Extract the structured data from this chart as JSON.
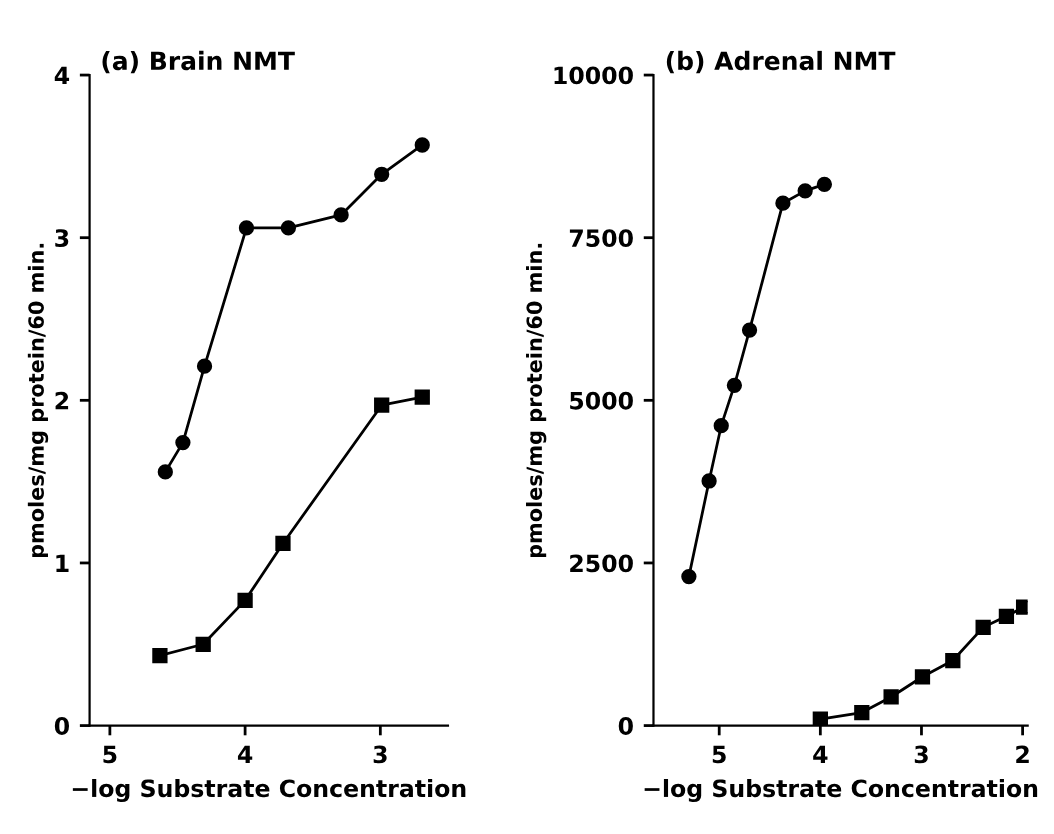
{
  "chart_data": [
    {
      "type": "line",
      "title": "(a) Brain NMT",
      "xlabel": "−log Substrate Concentration",
      "ylabel": "pmoles/mg protein/60 min.",
      "xlim": [
        5.15,
        2.5
      ],
      "ylim": [
        0,
        4
      ],
      "xticks": [
        5,
        4,
        3
      ],
      "yticks": [
        0,
        1,
        2,
        3,
        4
      ],
      "grid": false,
      "series": [
        {
          "color": "#000000",
          "marker": "circle",
          "x": [
            4.59,
            4.46,
            4.3,
            3.99,
            3.68,
            3.29,
            2.99,
            2.69
          ],
          "values": [
            1.56,
            1.74,
            2.21,
            3.06,
            3.06,
            3.14,
            3.39,
            3.57
          ]
        },
        {
          "color": "#000000",
          "marker": "square",
          "x": [
            4.63,
            4.31,
            4.0,
            3.72,
            2.99,
            2.69
          ],
          "values": [
            0.43,
            0.5,
            0.77,
            1.12,
            1.97,
            2.02
          ]
        }
      ]
    },
    {
      "type": "line",
      "title": "(b) Adrenal NMT",
      "xlabel": "−log Substrate Concentration",
      "ylabel": "pmoles/mg protein/60 min.",
      "xlim": [
        5.65,
        1.95
      ],
      "ylim": [
        0,
        10000
      ],
      "xticks": [
        5,
        4,
        3,
        2
      ],
      "yticks": [
        0,
        2500,
        5000,
        7500,
        10000
      ],
      "grid": false,
      "series": [
        {
          "color": "#000000",
          "marker": "circle",
          "x": [
            5.3,
            5.1,
            4.98,
            4.85,
            4.7,
            4.37,
            4.15,
            3.96
          ],
          "values": [
            2290,
            3760,
            4610,
            5230,
            6080,
            8030,
            8220,
            8320
          ]
        },
        {
          "color": "#000000",
          "marker": "square",
          "x": [
            4.0,
            3.59,
            3.3,
            2.99,
            2.69,
            2.39,
            2.16,
            1.99
          ],
          "values": [
            100,
            200,
            440,
            750,
            1000,
            1510,
            1680,
            1820
          ]
        }
      ]
    }
  ]
}
